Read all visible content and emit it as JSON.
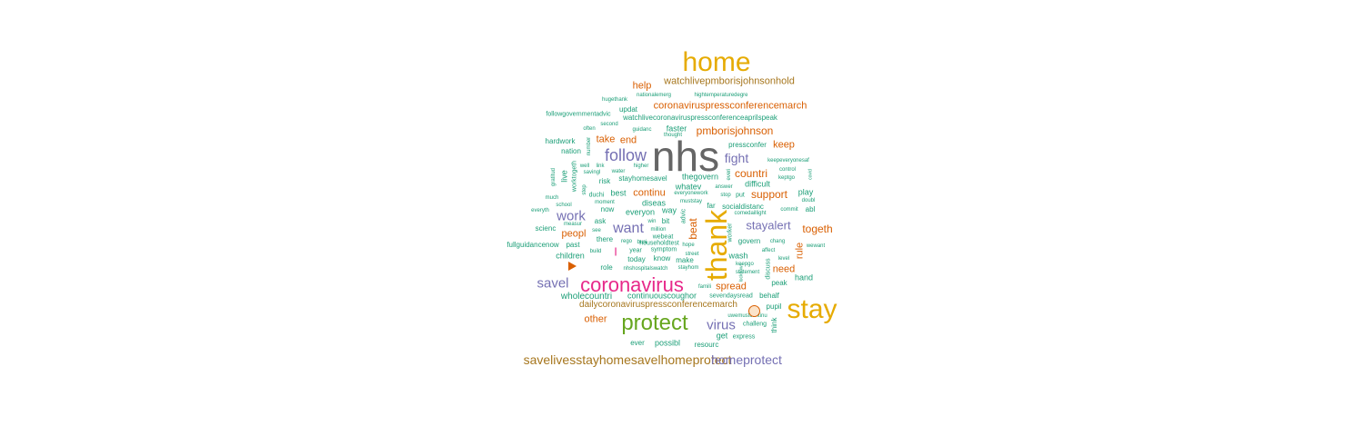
{
  "palette": {
    "teal": "#1b9e77",
    "orange": "#d95f02",
    "purple": "#7570b3",
    "magenta": "#e7298a",
    "green": "#66a61e",
    "gold": "#e6ab02",
    "brown": "#a6761d",
    "gray": "#666666"
  },
  "words": [
    {
      "text": "nhs",
      "color": "gray"
    },
    {
      "text": "home",
      "color": "gold"
    },
    {
      "text": "thank",
      "color": "gold",
      "vertical": true
    },
    {
      "text": "stay",
      "color": "gold"
    },
    {
      "text": "coronavirus",
      "color": "magenta"
    },
    {
      "text": "protect",
      "color": "green"
    },
    {
      "text": "follow",
      "color": "purple"
    },
    {
      "text": "savelivesstayhomesavelhomeprotect",
      "color": "brown"
    },
    {
      "text": "homeprotect",
      "color": "purple"
    },
    {
      "text": "savel",
      "color": "purple"
    },
    {
      "text": "virus",
      "color": "purple"
    },
    {
      "text": "want",
      "color": "purple"
    },
    {
      "text": "work",
      "color": "purple"
    },
    {
      "text": "fight",
      "color": "purple"
    },
    {
      "text": "stayalert",
      "color": "purple"
    },
    {
      "text": "pmborisjohnson",
      "color": "orange"
    },
    {
      "text": "watchlivepmborisjohnsonhold",
      "color": "brown"
    },
    {
      "text": "coronaviruspressconferencemarch",
      "color": "orange"
    },
    {
      "text": "togeth",
      "color": "orange"
    },
    {
      "text": "support",
      "color": "orange"
    },
    {
      "text": "countri",
      "color": "orange"
    },
    {
      "text": "spread",
      "color": "orange"
    },
    {
      "text": "keep",
      "color": "orange"
    },
    {
      "text": "need",
      "color": "orange"
    },
    {
      "text": "help",
      "color": "orange"
    },
    {
      "text": "take",
      "color": "orange"
    },
    {
      "text": "end",
      "color": "orange"
    },
    {
      "text": "peopl",
      "color": "orange"
    },
    {
      "text": "other",
      "color": "orange"
    },
    {
      "text": "beat",
      "color": "orange",
      "vertical": true
    },
    {
      "text": "rule",
      "color": "orange",
      "vertical": true
    },
    {
      "text": "continu",
      "color": "orange"
    },
    {
      "text": "dailycoronaviruspressconferencemarch",
      "color": "brown"
    },
    {
      "text": "wholecountri",
      "color": "teal"
    },
    {
      "text": "continuouscoughor",
      "color": "teal"
    },
    {
      "text": "possibl",
      "color": "teal"
    },
    {
      "text": "ever",
      "color": "teal"
    },
    {
      "text": "get",
      "color": "teal"
    },
    {
      "text": "resourc",
      "color": "teal"
    },
    {
      "text": "express",
      "color": "teal"
    },
    {
      "text": "think",
      "color": "teal",
      "vertical": true
    },
    {
      "text": "pupil",
      "color": "teal"
    },
    {
      "text": "behalf",
      "color": "teal"
    },
    {
      "text": "peak",
      "color": "teal"
    },
    {
      "text": "hand",
      "color": "teal"
    },
    {
      "text": "discuss",
      "color": "teal",
      "vertical": true
    },
    {
      "text": "level",
      "color": "teal"
    },
    {
      "text": "affect",
      "color": "teal"
    },
    {
      "text": "challeng",
      "color": "teal"
    },
    {
      "text": "uwemustcontinu",
      "color": "teal"
    },
    {
      "text": "sevendaysread",
      "color": "teal"
    },
    {
      "text": "famili",
      "color": "teal"
    },
    {
      "text": "statement",
      "color": "teal"
    },
    {
      "text": "keepgo",
      "color": "teal"
    },
    {
      "text": "wash",
      "color": "teal"
    },
    {
      "text": "govern",
      "color": "teal"
    },
    {
      "text": "chang",
      "color": "teal"
    },
    {
      "text": "wewant",
      "color": "teal"
    },
    {
      "text": "commit",
      "color": "teal"
    },
    {
      "text": "abl",
      "color": "teal"
    },
    {
      "text": "doubl",
      "color": "teal"
    },
    {
      "text": "play",
      "color": "teal"
    },
    {
      "text": "keptgo",
      "color": "teal"
    },
    {
      "text": "control",
      "color": "teal"
    },
    {
      "text": "keepeveryonesaf",
      "color": "teal"
    },
    {
      "text": "pressconfer",
      "color": "teal"
    },
    {
      "text": "difficult",
      "color": "teal"
    },
    {
      "text": "put",
      "color": "teal"
    },
    {
      "text": "stop",
      "color": "teal"
    },
    {
      "text": "answer",
      "color": "teal"
    },
    {
      "text": "whatev",
      "color": "teal"
    },
    {
      "text": "thegovern",
      "color": "teal"
    },
    {
      "text": "faster",
      "color": "teal"
    },
    {
      "text": "thought",
      "color": "teal"
    },
    {
      "text": "socialdistanc",
      "color": "teal"
    },
    {
      "text": "far",
      "color": "teal"
    },
    {
      "text": "comedaillight",
      "color": "teal"
    },
    {
      "text": "everyonework",
      "color": "teal"
    },
    {
      "text": "muststay",
      "color": "teal"
    },
    {
      "text": "diseas",
      "color": "teal"
    },
    {
      "text": "everyon",
      "color": "teal"
    },
    {
      "text": "way",
      "color": "teal"
    },
    {
      "text": "advic",
      "color": "teal",
      "vertical": true
    },
    {
      "text": "bit",
      "color": "teal"
    },
    {
      "text": "win",
      "color": "teal"
    },
    {
      "text": "million",
      "color": "teal"
    },
    {
      "text": "webeat",
      "color": "teal"
    },
    {
      "text": "hope",
      "color": "teal"
    },
    {
      "text": "street",
      "color": "teal"
    },
    {
      "text": "householdtest",
      "color": "teal"
    },
    {
      "text": "busi",
      "color": "teal"
    },
    {
      "text": "rego",
      "color": "teal"
    },
    {
      "text": "symptom",
      "color": "teal"
    },
    {
      "text": "year",
      "color": "teal"
    },
    {
      "text": "know",
      "color": "teal"
    },
    {
      "text": "make",
      "color": "teal"
    },
    {
      "text": "today",
      "color": "teal"
    },
    {
      "text": "nhshospitalswatch",
      "color": "teal"
    },
    {
      "text": "stayhom",
      "color": "teal"
    },
    {
      "text": "role",
      "color": "teal"
    },
    {
      "text": "build",
      "color": "teal"
    },
    {
      "text": "past",
      "color": "teal"
    },
    {
      "text": "children",
      "color": "teal"
    },
    {
      "text": "there",
      "color": "teal"
    },
    {
      "text": "see",
      "color": "teal"
    },
    {
      "text": "ask",
      "color": "teal"
    },
    {
      "text": "measur",
      "color": "teal"
    },
    {
      "text": "scienc",
      "color": "teal"
    },
    {
      "text": "fullguidancenow",
      "color": "teal"
    },
    {
      "text": "everyth",
      "color": "teal"
    },
    {
      "text": "school",
      "color": "teal"
    },
    {
      "text": "much",
      "color": "teal"
    },
    {
      "text": "gratitud",
      "color": "teal",
      "vertical": true
    },
    {
      "text": "live",
      "color": "teal",
      "vertical": true
    },
    {
      "text": "worktogeth",
      "color": "teal",
      "vertical": true
    },
    {
      "text": "step",
      "color": "teal",
      "vertical": true
    },
    {
      "text": "duchi",
      "color": "teal"
    },
    {
      "text": "moment",
      "color": "teal"
    },
    {
      "text": "best",
      "color": "teal"
    },
    {
      "text": "now",
      "color": "teal"
    },
    {
      "text": "risk",
      "color": "teal"
    },
    {
      "text": "stayhomesavel",
      "color": "teal"
    },
    {
      "text": "water",
      "color": "teal"
    },
    {
      "text": "higher",
      "color": "teal"
    },
    {
      "text": "link",
      "color": "teal"
    },
    {
      "text": "well",
      "color": "teal"
    },
    {
      "text": "savingl",
      "color": "teal"
    },
    {
      "text": "nation",
      "color": "teal"
    },
    {
      "text": "hardwork",
      "color": "teal"
    },
    {
      "text": "number",
      "color": "teal",
      "vertical": true
    },
    {
      "text": "followgovernmentadvic",
      "color": "teal"
    },
    {
      "text": "often",
      "color": "teal"
    },
    {
      "text": "second",
      "color": "teal"
    },
    {
      "text": "guidanc",
      "color": "teal"
    },
    {
      "text": "watchlivecoronaviruspressconferenceaprilspeak",
      "color": "teal"
    },
    {
      "text": "updat",
      "color": "teal"
    },
    {
      "text": "hugethank",
      "color": "teal"
    },
    {
      "text": "nationalemerg",
      "color": "teal"
    },
    {
      "text": "hightemperaturedegre",
      "color": "teal"
    },
    {
      "text": "everi",
      "color": "teal",
      "vertical": true
    },
    {
      "text": "worker",
      "color": "teal",
      "vertical": true
    },
    {
      "text": "covid",
      "color": "teal",
      "vertical": true
    },
    {
      "text": "lockdown",
      "color": "teal",
      "vertical": true
    },
    {
      "text": "I",
      "color": "magenta"
    }
  ]
}
